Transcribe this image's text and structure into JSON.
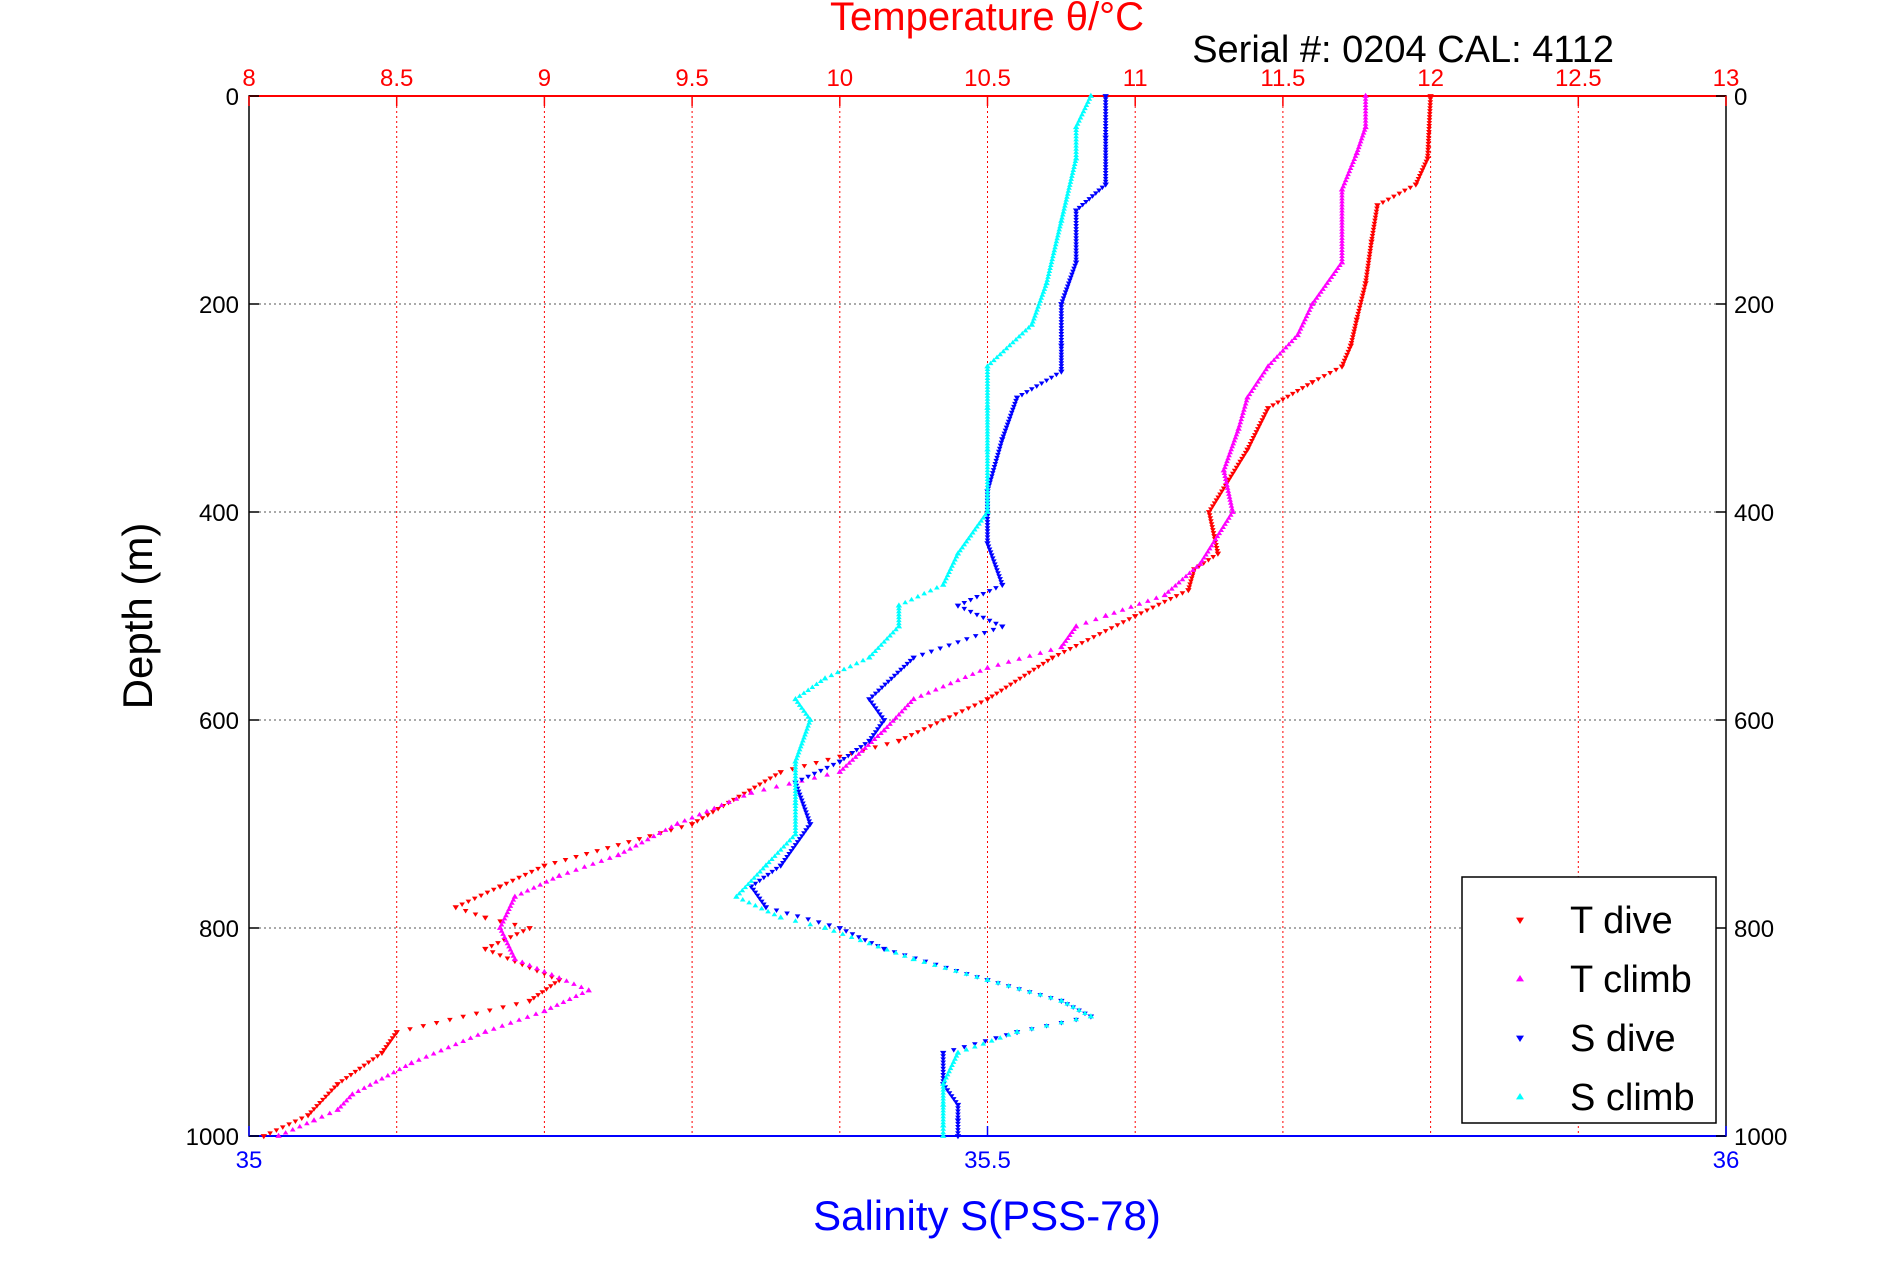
{
  "chart_data": {
    "type": "scatter",
    "title": "Temperature θ/°C",
    "subtitle": "Serial #: 0204  CAL: 4112",
    "ylabel": "Depth (m)",
    "xlabel": "Salinity S(PSS-78)",
    "ylim": [
      1000,
      0
    ],
    "yticks": [
      0,
      200,
      400,
      600,
      800,
      1000
    ],
    "temperature_axis": {
      "label": "Temperature θ/°C",
      "range": [
        8,
        13
      ],
      "ticks": [
        "8",
        "8.5",
        "9",
        "9.5",
        "10",
        "10.5",
        "11",
        "11.5",
        "12",
        "12.5",
        "13"
      ],
      "color": "#ff0000"
    },
    "salinity_axis": {
      "label": "Salinity S(PSS-78)",
      "range": [
        35,
        36
      ],
      "ticks": [
        "35",
        "35.5",
        "36"
      ],
      "color": "#0000ff"
    },
    "grid": true,
    "legend_position": "bottom-right",
    "series": [
      {
        "name": "T dive",
        "axis": "temperature",
        "color": "#ff0000",
        "marker": "triangle-down",
        "points": [
          [
            0,
            12.0
          ],
          [
            60,
            11.99
          ],
          [
            85,
            11.95
          ],
          [
            105,
            11.82
          ],
          [
            140,
            11.8
          ],
          [
            180,
            11.78
          ],
          [
            215,
            11.75
          ],
          [
            240,
            11.73
          ],
          [
            260,
            11.7
          ],
          [
            275,
            11.6
          ],
          [
            300,
            11.45
          ],
          [
            340,
            11.38
          ],
          [
            400,
            11.25
          ],
          [
            440,
            11.28
          ],
          [
            455,
            11.2
          ],
          [
            475,
            11.18
          ],
          [
            500,
            11.0
          ],
          [
            540,
            10.72
          ],
          [
            580,
            10.5
          ],
          [
            620,
            10.2
          ],
          [
            650,
            9.8
          ],
          [
            700,
            9.5
          ],
          [
            740,
            9.0
          ],
          [
            760,
            8.85
          ],
          [
            780,
            8.7
          ],
          [
            790,
            8.8
          ],
          [
            800,
            8.95
          ],
          [
            820,
            8.8
          ],
          [
            850,
            9.05
          ],
          [
            870,
            8.95
          ],
          [
            900,
            8.5
          ],
          [
            920,
            8.45
          ],
          [
            950,
            8.3
          ],
          [
            980,
            8.2
          ],
          [
            1000,
            8.05
          ]
        ]
      },
      {
        "name": "T climb",
        "axis": "temperature",
        "color": "#ff00ff",
        "marker": "triangle-up",
        "points": [
          [
            0,
            11.78
          ],
          [
            30,
            11.78
          ],
          [
            55,
            11.75
          ],
          [
            90,
            11.7
          ],
          [
            160,
            11.7
          ],
          [
            200,
            11.6
          ],
          [
            230,
            11.55
          ],
          [
            260,
            11.45
          ],
          [
            290,
            11.38
          ],
          [
            320,
            11.35
          ],
          [
            360,
            11.3
          ],
          [
            400,
            11.33
          ],
          [
            450,
            11.22
          ],
          [
            480,
            11.1
          ],
          [
            500,
            10.9
          ],
          [
            510,
            10.8
          ],
          [
            530,
            10.75
          ],
          [
            550,
            10.5
          ],
          [
            580,
            10.25
          ],
          [
            610,
            10.15
          ],
          [
            650,
            10.0
          ],
          [
            670,
            9.7
          ],
          [
            700,
            9.45
          ],
          [
            730,
            9.25
          ],
          [
            750,
            9.05
          ],
          [
            770,
            8.9
          ],
          [
            800,
            8.85
          ],
          [
            830,
            8.9
          ],
          [
            860,
            9.15
          ],
          [
            880,
            9.0
          ],
          [
            900,
            8.8
          ],
          [
            930,
            8.55
          ],
          [
            960,
            8.35
          ],
          [
            975,
            8.3
          ],
          [
            985,
            8.22
          ],
          [
            1000,
            8.1
          ]
        ]
      },
      {
        "name": "S dive",
        "axis": "salinity",
        "color": "#0000ff",
        "marker": "triangle-down",
        "points": [
          [
            0,
            35.58
          ],
          [
            40,
            35.58
          ],
          [
            85,
            35.58
          ],
          [
            110,
            35.56
          ],
          [
            160,
            35.56
          ],
          [
            200,
            35.55
          ],
          [
            240,
            35.55
          ],
          [
            265,
            35.55
          ],
          [
            290,
            35.52
          ],
          [
            330,
            35.51
          ],
          [
            380,
            35.5
          ],
          [
            430,
            35.5
          ],
          [
            470,
            35.51
          ],
          [
            490,
            35.48
          ],
          [
            510,
            35.51
          ],
          [
            540,
            35.45
          ],
          [
            580,
            35.42
          ],
          [
            600,
            35.43
          ],
          [
            620,
            35.42
          ],
          [
            640,
            35.4
          ],
          [
            660,
            35.37
          ],
          [
            700,
            35.38
          ],
          [
            740,
            35.36
          ],
          [
            760,
            35.34
          ],
          [
            780,
            35.35
          ],
          [
            800,
            35.4
          ],
          [
            820,
            35.43
          ],
          [
            850,
            35.5
          ],
          [
            870,
            35.55
          ],
          [
            885,
            35.57
          ],
          [
            900,
            35.52
          ],
          [
            920,
            35.47
          ],
          [
            950,
            35.47
          ],
          [
            970,
            35.48
          ],
          [
            985,
            35.48
          ],
          [
            1000,
            35.48
          ]
        ]
      },
      {
        "name": "S climb",
        "axis": "salinity",
        "color": "#00ffff",
        "marker": "triangle-up",
        "points": [
          [
            0,
            35.57
          ],
          [
            30,
            35.56
          ],
          [
            60,
            35.56
          ],
          [
            120,
            35.55
          ],
          [
            180,
            35.54
          ],
          [
            220,
            35.53
          ],
          [
            260,
            35.5
          ],
          [
            300,
            35.5
          ],
          [
            340,
            35.5
          ],
          [
            400,
            35.5
          ],
          [
            440,
            35.48
          ],
          [
            470,
            35.47
          ],
          [
            490,
            35.44
          ],
          [
            510,
            35.44
          ],
          [
            540,
            35.42
          ],
          [
            560,
            35.39
          ],
          [
            580,
            35.37
          ],
          [
            600,
            35.38
          ],
          [
            640,
            35.37
          ],
          [
            680,
            35.37
          ],
          [
            710,
            35.37
          ],
          [
            740,
            35.35
          ],
          [
            770,
            35.33
          ],
          [
            790,
            35.36
          ],
          [
            800,
            35.39
          ],
          [
            830,
            35.45
          ],
          [
            850,
            35.5
          ],
          [
            870,
            35.55
          ],
          [
            885,
            35.57
          ],
          [
            900,
            35.52
          ],
          [
            920,
            35.48
          ],
          [
            950,
            35.47
          ],
          [
            970,
            35.47
          ],
          [
            990,
            35.47
          ],
          [
            1000,
            35.47
          ]
        ]
      }
    ]
  }
}
